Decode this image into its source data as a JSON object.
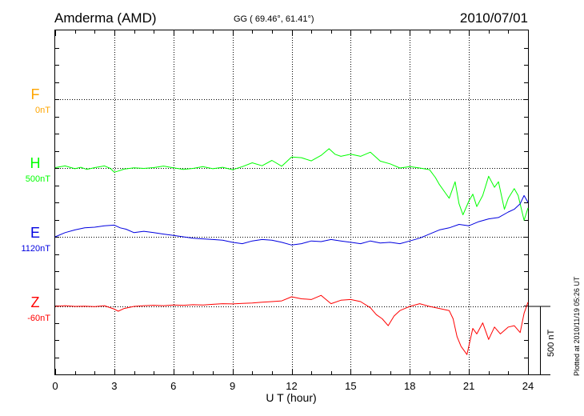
{
  "header": {
    "station": "Amderma (AMD)",
    "coords": "GG ( 69.46°,  61.41°)",
    "date": "2010/07/01"
  },
  "plotted_note": "Plotted at 2010/11/19 05:26 UT",
  "scale_bar": {
    "label": "500 nT",
    "value_nT": 500
  },
  "chart_data": {
    "type": "line",
    "title": "Amderma (AMD)",
    "xlabel": "U T (hour)",
    "ylabel": "",
    "xlim": [
      0,
      24
    ],
    "xticks": [
      0,
      3,
      6,
      9,
      12,
      15,
      18,
      21,
      24
    ],
    "grid": true,
    "series": [
      {
        "name": "F",
        "baseline_label": "0nT",
        "color": "#ffa500",
        "x": [],
        "y": []
      },
      {
        "name": "H",
        "baseline_label": "500nT",
        "color": "#00ff00",
        "x": [
          0,
          0.5,
          1,
          1.3,
          1.6,
          2,
          2.5,
          2.8,
          3,
          3.2,
          3.5,
          4,
          4.5,
          5,
          5.5,
          6,
          6.5,
          7,
          7.5,
          8,
          8.5,
          9,
          9.5,
          10,
          10.5,
          11,
          11.5,
          12,
          12.5,
          13,
          13.5,
          13.9,
          14.2,
          14.5,
          15,
          15.5,
          16,
          16.5,
          17,
          17.5,
          18,
          18.5,
          19,
          19.3,
          19.5,
          19.8,
          20,
          20.3,
          20.5,
          20.7,
          21,
          21.2,
          21.4,
          21.7,
          22,
          22.3,
          22.5,
          22.8,
          23,
          23.3,
          23.5,
          23.8,
          24
        ],
        "y": [
          503,
          515,
          495,
          505,
          490,
          503,
          515,
          497,
          470,
          478,
          492,
          502,
          497,
          503,
          514,
          502,
          490,
          497,
          510,
          495,
          505,
          488,
          510,
          538,
          516,
          555,
          513,
          580,
          575,
          552,
          592,
          640,
          600,
          585,
          600,
          585,
          615,
          550,
          530,
          500,
          510,
          500,
          488,
          430,
          380,
          320,
          280,
          400,
          240,
          160,
          260,
          310,
          220,
          300,
          440,
          360,
          400,
          200,
          280,
          350,
          300,
          120,
          210
        ]
      },
      {
        "name": "E",
        "baseline_label": "1120nT",
        "color": "#0000e0",
        "x": [
          0,
          0.5,
          1,
          1.5,
          2,
          2.5,
          3,
          3.3,
          3.6,
          4,
          4.5,
          5,
          5.5,
          6,
          6.5,
          7,
          7.5,
          8,
          8.5,
          9,
          9.5,
          10,
          10.5,
          11,
          11.5,
          12,
          12.5,
          13,
          13.5,
          14,
          14.5,
          15,
          15.5,
          16,
          16.5,
          17,
          17.5,
          18,
          18.5,
          19,
          19.5,
          20,
          20.5,
          21,
          21.5,
          22,
          22.5,
          23,
          23.3,
          23.6,
          23.8,
          24
        ],
        "y": [
          1120,
          1150,
          1170,
          1185,
          1190,
          1200,
          1205,
          1185,
          1175,
          1150,
          1160,
          1150,
          1140,
          1130,
          1120,
          1110,
          1105,
          1100,
          1095,
          1080,
          1070,
          1090,
          1100,
          1095,
          1080,
          1060,
          1070,
          1090,
          1085,
          1100,
          1090,
          1080,
          1070,
          1090,
          1075,
          1080,
          1070,
          1090,
          1110,
          1140,
          1170,
          1185,
          1210,
          1200,
          1230,
          1250,
          1260,
          1300,
          1320,
          1360,
          1420,
          1370
        ]
      },
      {
        "name": "Z",
        "baseline_label": "-60nT",
        "color": "#ff0000",
        "x": [
          0,
          0.5,
          1,
          1.5,
          2,
          2.5,
          3,
          3.2,
          3.5,
          4,
          4.5,
          5,
          5.5,
          6,
          6.5,
          7,
          7.5,
          8,
          8.5,
          9,
          9.5,
          10,
          10.5,
          11,
          11.5,
          12,
          12.5,
          13,
          13.5,
          14,
          14.5,
          15,
          15.5,
          16,
          16.3,
          16.6,
          16.9,
          17.2,
          17.5,
          18,
          18.5,
          19,
          19.5,
          20,
          20.2,
          20.4,
          20.6,
          20.9,
          21.2,
          21.4,
          21.7,
          22,
          22.3,
          22.6,
          23,
          23.3,
          23.6,
          23.8,
          24
        ],
        "y": [
          -60,
          -55,
          -60,
          -58,
          -62,
          -55,
          -80,
          -95,
          -75,
          -60,
          -55,
          -52,
          -55,
          -50,
          -52,
          -48,
          -50,
          -45,
          -40,
          -42,
          -38,
          -35,
          -30,
          -25,
          -20,
          10,
          -5,
          -10,
          20,
          -40,
          -15,
          -10,
          -25,
          -70,
          -120,
          -150,
          -200,
          -130,
          -90,
          -60,
          -40,
          -60,
          -75,
          -90,
          -150,
          -280,
          -350,
          -410,
          -220,
          -260,
          -180,
          -300,
          -210,
          -260,
          -210,
          -200,
          -250,
          -110,
          -30
        ]
      }
    ]
  }
}
